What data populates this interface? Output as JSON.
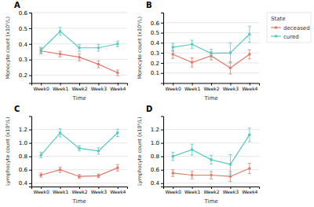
{
  "chart_data": [
    {
      "type": "line",
      "title": "A",
      "xlabel": "Time",
      "ylabel": "Monocyte count (x10⁹/L)",
      "categories": [
        "Week0",
        "Week1",
        "Week2",
        "Week3",
        "Week4"
      ],
      "ylim": [
        0.15,
        0.6
      ],
      "yticks": [
        0.2,
        0.3,
        0.4,
        0.5,
        0.6
      ],
      "grid": true,
      "series": [
        {
          "name": "deceased",
          "color": "#E07B6A",
          "marker": "circle",
          "values": [
            0.355,
            0.335,
            0.315,
            0.27,
            0.215
          ],
          "errors": [
            0.018,
            0.018,
            0.022,
            0.022,
            0.018
          ]
        },
        {
          "name": "cured",
          "color": "#5BC8C0",
          "marker": "circle",
          "values": [
            0.36,
            0.48,
            0.375,
            0.375,
            0.4
          ],
          "errors": [
            0.018,
            0.025,
            0.022,
            0.022,
            0.018
          ]
        }
      ]
    },
    {
      "type": "line",
      "title": "B",
      "xlabel": "Time",
      "ylabel": "Monocyte count (x10⁹/L)",
      "categories": [
        "Week0",
        "Week1",
        "Week2",
        "Week3",
        "Week4"
      ],
      "ylim": [
        0.0,
        0.7
      ],
      "yticks": [
        0.1,
        0.2,
        0.3,
        0.4,
        0.5,
        0.6
      ],
      "grid": true,
      "legend": "right",
      "legend_title": "State",
      "series": [
        {
          "name": "deceased",
          "color": "#E07B6A",
          "marker": "circle",
          "values": [
            0.285,
            0.205,
            0.27,
            0.15,
            0.285
          ],
          "errors": [
            0.04,
            0.045,
            0.04,
            0.06,
            0.045
          ]
        },
        {
          "name": "cured",
          "color": "#5BC8C0",
          "marker": "circle",
          "values": [
            0.355,
            0.385,
            0.295,
            0.3,
            0.485
          ],
          "errors": [
            0.04,
            0.04,
            0.04,
            0.1,
            0.08
          ]
        }
      ]
    },
    {
      "type": "line",
      "title": "C",
      "xlabel": "Time",
      "ylabel": "Lymphocyte count (x10⁹/L)",
      "categories": [
        "Week0",
        "Week1",
        "Week2",
        "Week3",
        "Week4"
      ],
      "ylim": [
        0.35,
        1.4
      ],
      "yticks": [
        0.4,
        0.6,
        0.8,
        {
          "value": 1.0,
          "label": "1.0"
        },
        1.2
      ],
      "grid": true,
      "series": [
        {
          "name": "deceased",
          "color": "#E07B6A",
          "marker": "circle",
          "values": [
            0.52,
            0.6,
            0.5,
            0.51,
            0.63
          ],
          "errors": [
            0.03,
            0.04,
            0.028,
            0.028,
            0.048
          ]
        },
        {
          "name": "cured",
          "color": "#5BC8C0",
          "marker": "circle",
          "values": [
            0.82,
            1.15,
            0.92,
            0.88,
            1.15
          ],
          "errors": [
            0.04,
            0.06,
            0.04,
            0.048,
            0.055
          ]
        }
      ]
    },
    {
      "type": "line",
      "title": "D",
      "xlabel": "Time",
      "ylabel": "Lymphocyte count (x10⁹/L)",
      "categories": [
        "Week0",
        "Week1",
        "Week2",
        "Week3",
        "Week4"
      ],
      "ylim": [
        0.35,
        1.4
      ],
      "yticks": [
        0.4,
        0.6,
        0.8,
        {
          "value": 1.0,
          "label": "1.0"
        },
        1.2
      ],
      "grid": true,
      "series": [
        {
          "name": "deceased",
          "color": "#E07B6A",
          "marker": "circle",
          "values": [
            0.55,
            0.52,
            0.52,
            0.5,
            0.62
          ],
          "errors": [
            0.05,
            0.055,
            0.055,
            0.075,
            0.075
          ]
        },
        {
          "name": "cured",
          "color": "#5BC8C0",
          "marker": "circle",
          "values": [
            0.8,
            0.9,
            0.75,
            0.68,
            1.12
          ],
          "errors": [
            0.06,
            0.08,
            0.065,
            0.145,
            0.1
          ]
        }
      ]
    }
  ]
}
